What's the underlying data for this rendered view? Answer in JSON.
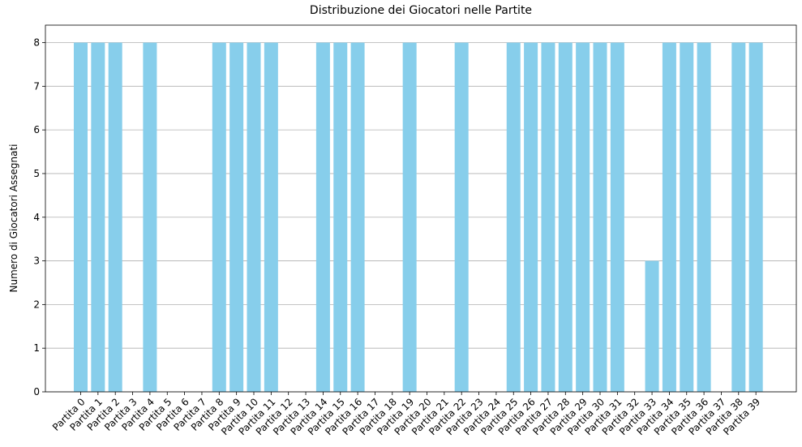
{
  "chart_data": {
    "type": "bar",
    "title": "Distribuzione dei Giocatori nelle Partite",
    "xlabel": "",
    "ylabel": "Numero di Giocatori Assegnati",
    "categories": [
      "Partita 0",
      "Partita 1",
      "Partita 2",
      "Partita 3",
      "Partita 4",
      "Partita 5",
      "Partita 6",
      "Partita 7",
      "Partita 8",
      "Partita 9",
      "Partita 10",
      "Partita 11",
      "Partita 12",
      "Partita 13",
      "Partita 14",
      "Partita 15",
      "Partita 16",
      "Partita 17",
      "Partita 18",
      "Partita 19",
      "Partita 20",
      "Partita 21",
      "Partita 22",
      "Partita 23",
      "Partita 24",
      "Partita 25",
      "Partita 26",
      "Partita 27",
      "Partita 28",
      "Partita 29",
      "Partita 30",
      "Partita 31",
      "Partita 32",
      "Partita 33",
      "Partita 34",
      "Partita 35",
      "Partita 36",
      "Partita 37",
      "Partita 38",
      "Partita 39"
    ],
    "values": [
      8,
      8,
      8,
      0,
      8,
      0,
      0,
      0,
      8,
      8,
      8,
      8,
      0,
      0,
      8,
      8,
      8,
      0,
      0,
      8,
      0,
      0,
      8,
      0,
      0,
      8,
      8,
      8,
      8,
      8,
      8,
      8,
      0,
      3,
      8,
      8,
      8,
      0,
      8,
      8
    ],
    "yticks": [
      "0",
      "1",
      "2",
      "3",
      "4",
      "5",
      "6",
      "7",
      "8"
    ],
    "ylim": [
      0,
      8.4
    ],
    "grid": "horizontal",
    "bar_color": "#87CEEB"
  }
}
